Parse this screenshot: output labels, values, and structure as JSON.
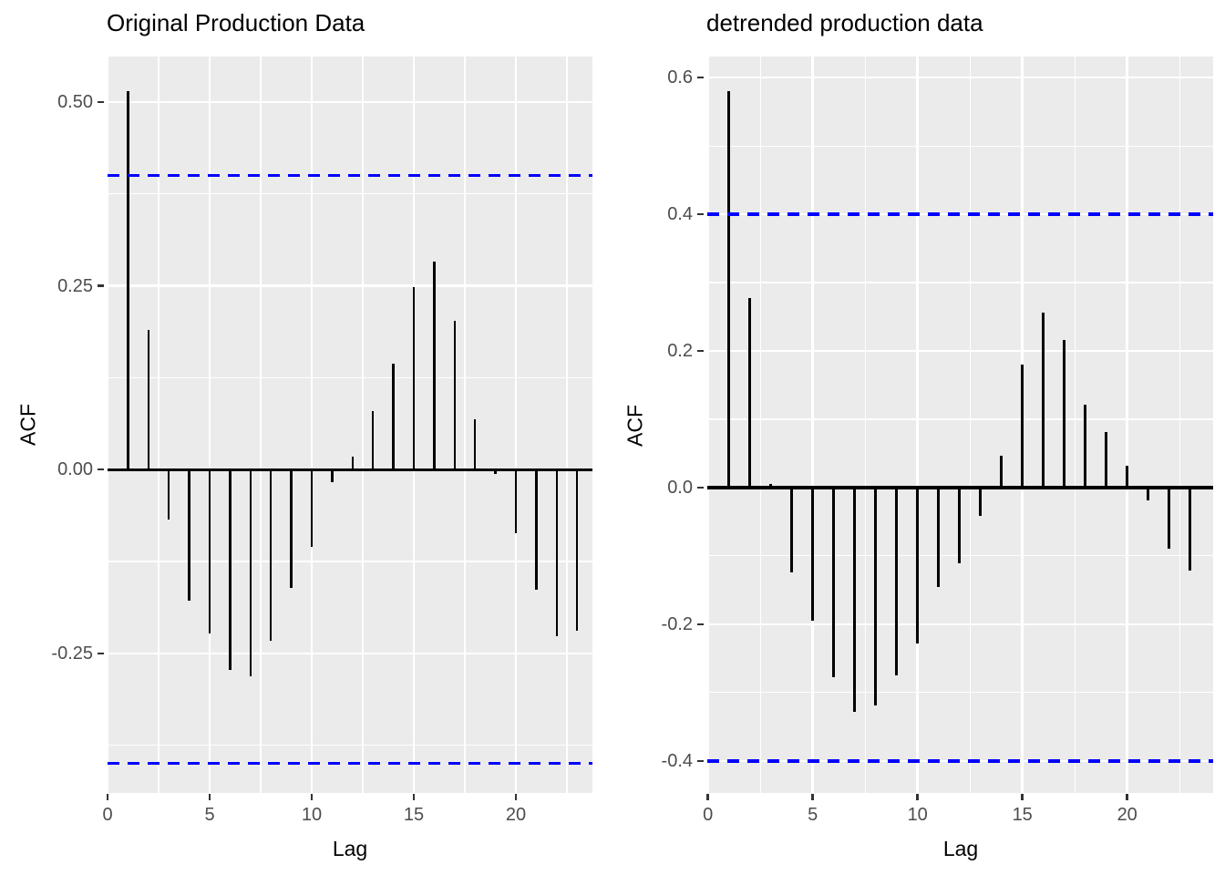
{
  "figure": {
    "background": "#FFFFFF"
  },
  "style": {
    "panel_background": "#EBEBEB",
    "grid_color": "#FFFFFF",
    "bar_color": "#000000",
    "zero_line_color": "#000000",
    "confidence_line_color": "#0000FF",
    "tick_label_color": "#4D4D4D",
    "title_color": "#000000"
  },
  "chart_data": [
    {
      "type": "bar",
      "title": "Original Production Data",
      "xlabel": "Lag",
      "ylabel": "ACF",
      "lags": [
        1,
        2,
        3,
        4,
        5,
        6,
        7,
        8,
        9,
        10,
        11,
        12,
        13,
        14,
        15,
        16,
        17,
        18,
        19,
        20,
        21,
        22,
        23
      ],
      "values": [
        0.515,
        0.19,
        -0.068,
        -0.178,
        -0.223,
        -0.273,
        -0.281,
        -0.233,
        -0.161,
        -0.105,
        -0.017,
        0.017,
        0.079,
        0.144,
        0.248,
        0.283,
        0.202,
        0.069,
        -0.006,
        -0.087,
        -0.163,
        -0.227,
        -0.219
      ],
      "ci_upper": 0.4,
      "ci_lower": -0.4,
      "ci_style": "dashed",
      "x_ticks": {
        "values": [
          0,
          5,
          10,
          15,
          20
        ],
        "labels": [
          "0",
          "5",
          "10",
          "15",
          "20"
        ]
      },
      "x_minor": [
        2.5,
        7.5,
        12.5,
        17.5,
        22.5
      ],
      "y_ticks": {
        "values": [
          0.5,
          0.25,
          0,
          -0.25
        ],
        "labels": [
          "0.50",
          "0.25",
          "0.00",
          "-0.25"
        ]
      },
      "y_minor": [
        0.375,
        0.125,
        -0.125,
        -0.375
      ],
      "xlim": [
        0,
        23.75
      ],
      "ylim": [
        -0.44,
        0.562
      ],
      "grid": true,
      "legend": "none"
    },
    {
      "type": "bar",
      "title": "detrended production data",
      "xlabel": "Lag",
      "ylabel": "ACF",
      "lags": [
        1,
        2,
        3,
        4,
        5,
        6,
        7,
        8,
        9,
        10,
        11,
        12,
        13,
        14,
        15,
        16,
        17,
        18,
        19,
        20,
        21,
        22,
        23
      ],
      "values": [
        0.58,
        0.277,
        0.005,
        -0.124,
        -0.195,
        -0.278,
        -0.328,
        -0.319,
        -0.275,
        -0.228,
        -0.145,
        -0.111,
        -0.041,
        0.047,
        0.18,
        0.256,
        0.216,
        0.121,
        0.081,
        0.032,
        -0.019,
        -0.089,
        -0.122
      ],
      "ci_upper": 0.4,
      "ci_lower": -0.4,
      "ci_style": "dashed",
      "x_ticks": {
        "values": [
          0,
          5,
          10,
          15,
          20
        ],
        "labels": [
          "0",
          "5",
          "10",
          "15",
          "20"
        ]
      },
      "x_minor": [
        2.5,
        7.5,
        12.5,
        17.5,
        22.5
      ],
      "y_ticks": {
        "values": [
          0.6,
          0.4,
          0.2,
          0,
          -0.2,
          -0.4
        ],
        "labels": [
          "0.6",
          "0.4",
          "0.2",
          "0.0",
          "-0.2",
          "-0.4"
        ]
      },
      "y_minor": [
        0.5,
        0.3,
        0.1,
        -0.1,
        -0.3
      ],
      "xlim": [
        -0.03,
        24.1
      ],
      "ylim": [
        -0.447,
        0.631
      ],
      "grid": true,
      "legend": "none"
    }
  ]
}
